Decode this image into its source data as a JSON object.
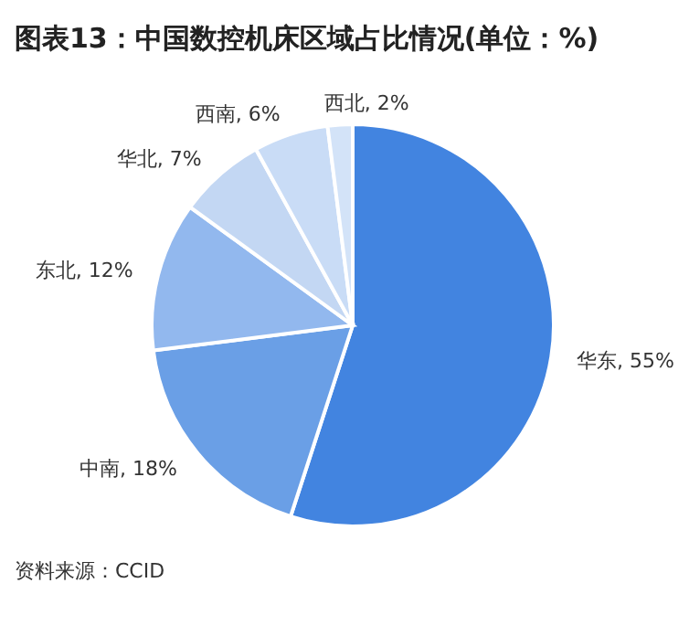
{
  "chart_data": {
    "type": "pie",
    "title": "图表13：中国数控机床区域占比情况(单位：%)",
    "categories": [
      "华东",
      "中南",
      "东北",
      "华北",
      "西南",
      "西北"
    ],
    "values": [
      55,
      18,
      12,
      7,
      6,
      2
    ],
    "colors": [
      "#4284e0",
      "#6a9fe6",
      "#92b8ee",
      "#c3d7f3",
      "#c9dcf6",
      "#d3e3f8"
    ],
    "value_labels": [
      ", 55%",
      ", 18%",
      ", 12%",
      ", 7%",
      ", 6%",
      ", 2%"
    ],
    "annotations": [
      "资料来源：CCID"
    ]
  }
}
